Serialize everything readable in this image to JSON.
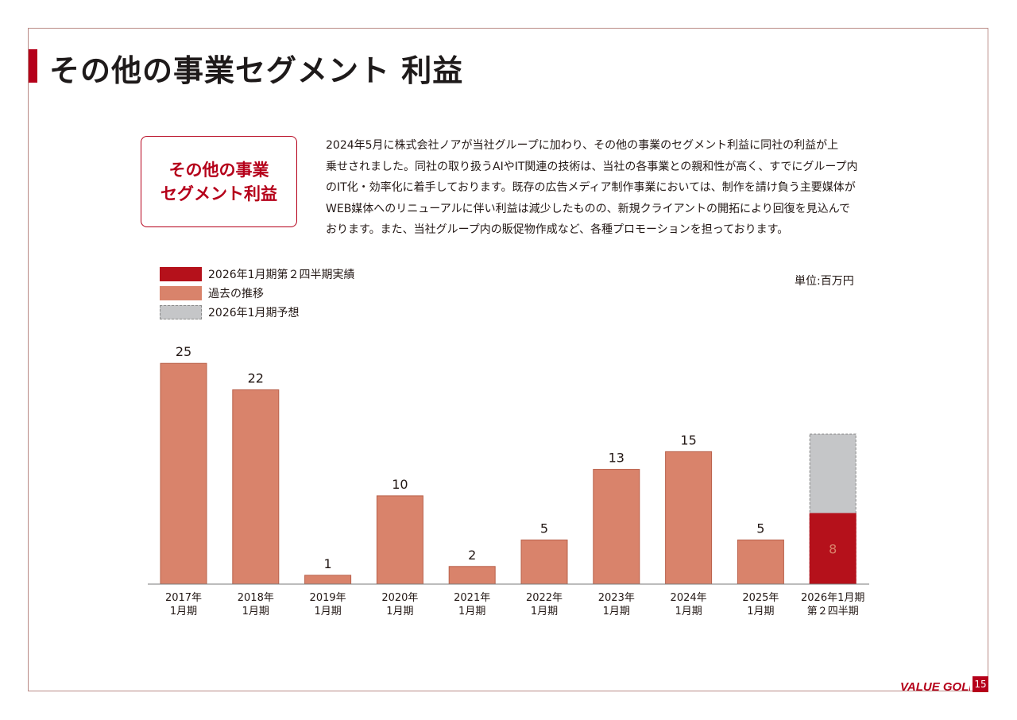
{
  "page": {
    "title": "その他の事業セグメント 利益",
    "page_number": "15",
    "logo_text": "VALUE GOLF",
    "accent_color": "#b5001a"
  },
  "segment_box": {
    "line1": "その他の事業",
    "line2": "セグメント利益"
  },
  "description": {
    "lines": [
      "2024年5月に株式会社ノアが当社グループに加わり、その他の事業のセグメント利益に同社の利益が上",
      "乗せされました。同社の取り扱うAIやIT関連の技術は、当社の各事業との親和性が高く、すでにグループ内",
      "のIT化・効率化に着手しております。既存の広告メディア制作事業においては、制作を請け負う主要媒体が",
      "WEB媒体へのリニューアルに伴い利益は減少したものの、新規クライアントの開拓により回復を見込んで",
      "おります。また、当社グループ内の販促物作成など、各種プロモーションを担っております。"
    ]
  },
  "legend": [
    {
      "label": "2026年1月期第２四半期実績",
      "color": "#b5111b",
      "style": "solid"
    },
    {
      "label": "過去の推移",
      "color": "#d9836b",
      "style": "solid"
    },
    {
      "label": "2026年1月期予想",
      "color": "#c5c6c8",
      "style": "dashed"
    }
  ],
  "unit_label": "単位:百万円",
  "chart_data": {
    "type": "bar",
    "categories": [
      [
        "2017年",
        "1月期"
      ],
      [
        "2018年",
        "1月期"
      ],
      [
        "2019年",
        "1月期"
      ],
      [
        "2020年",
        "1月期"
      ],
      [
        "2021年",
        "1月期"
      ],
      [
        "2022年",
        "1月期"
      ],
      [
        "2023年",
        "1月期"
      ],
      [
        "2024年",
        "1月期"
      ],
      [
        "2025年",
        "1月期"
      ],
      [
        "2026年1月期",
        "第２四半期"
      ]
    ],
    "values": [
      25,
      22,
      1,
      10,
      2,
      5,
      13,
      15,
      5,
      8
    ],
    "data_labels": [
      "25",
      "22",
      "1",
      "10",
      "2",
      "5",
      "13",
      "15",
      "5",
      "8"
    ],
    "forecast_last": 17,
    "colors": {
      "past": "#d9836b",
      "actual": "#b5111b",
      "forecast": "#c5c6c8",
      "past_stroke": "#b8604a"
    },
    "ylim": [
      0,
      27
    ],
    "grid": false
  }
}
